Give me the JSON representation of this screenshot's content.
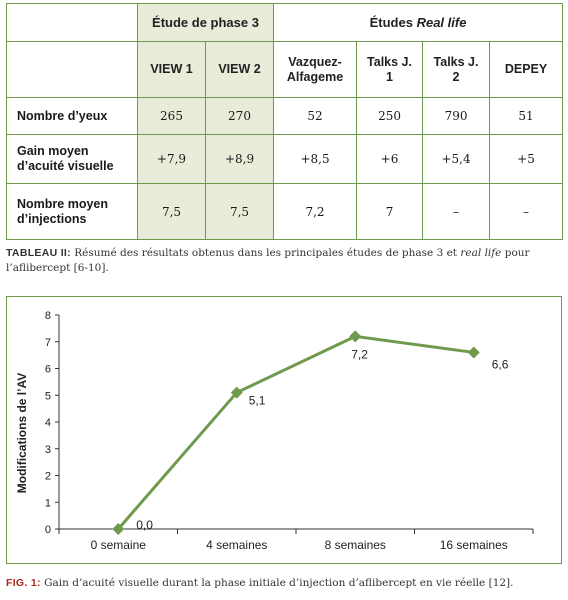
{
  "table": {
    "group_headers": {
      "phase3": "Étude de phase 3",
      "real_life_prefix": "Études ",
      "real_life_em": "Real life"
    },
    "columns": [
      "VIEW 1",
      "VIEW 2",
      "Vazquez-Alfageme",
      "Talks J. 1",
      "Talks J. 2",
      "DEPEY"
    ],
    "rows": [
      {
        "label": "Nombre d’yeux",
        "values": [
          "265",
          "270",
          "52",
          "250",
          "790",
          "51"
        ]
      },
      {
        "label": "Gain moyen d’acuité visuelle",
        "values": [
          "+7,9",
          "+8,9",
          "+8,5",
          "+6",
          "+5,4",
          "+5"
        ]
      },
      {
        "label": "Nombre moyen d’injections",
        "values": [
          "7,5",
          "7,5",
          "7,2",
          "7",
          "–",
          "–"
        ]
      }
    ],
    "accent_color": "#6f9a4c",
    "phase3_fill": "#e8ecd9"
  },
  "table_caption": {
    "label": "TABLEAU II:",
    "text_before": " Résumé des résultats obtenus dans les principales études de phase 3 et ",
    "text_em": "real life",
    "text_after": " pour l’aflibercept [6-10]."
  },
  "chart_data": {
    "type": "line",
    "categories": [
      "0 semaine",
      "4 semaines",
      "8 semaines",
      "16 semaines"
    ],
    "values": [
      0.0,
      5.1,
      7.2,
      6.6
    ],
    "data_labels": [
      "0,0",
      "5,1",
      "7,2",
      "6,6"
    ],
    "ylabel": "Modifications de l’AV",
    "ylim": [
      0,
      8
    ],
    "yticks": [
      "0",
      "1",
      "2",
      "3",
      "4",
      "5",
      "6",
      "7",
      "8"
    ],
    "line_color": "#6f9a4c",
    "grid": false,
    "legend": "none"
  },
  "figure_caption": {
    "label": "FIG. 1:",
    "text": " Gain d’acuité visuelle durant la phase initiale d’injection d’aflibercept en vie réelle [12]."
  }
}
